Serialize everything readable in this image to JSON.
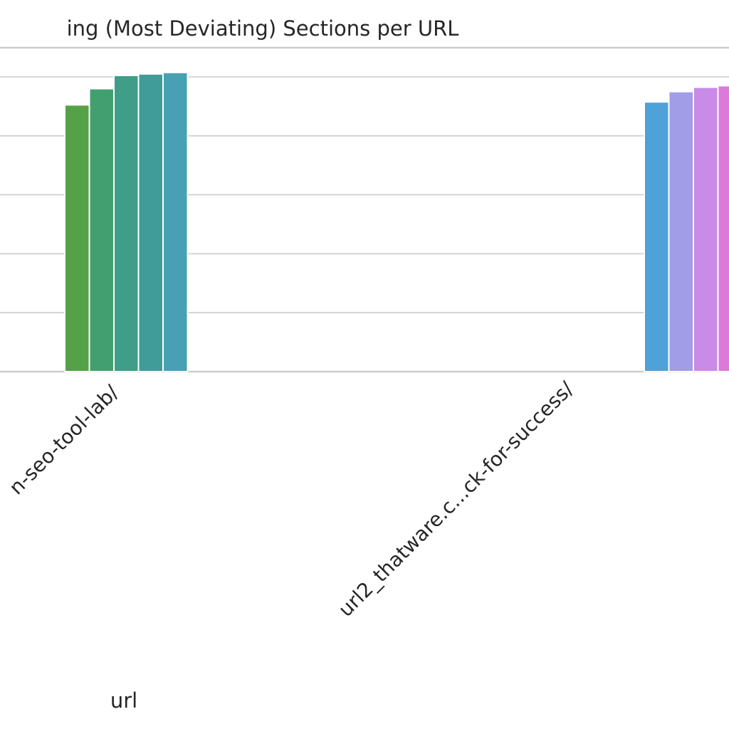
{
  "chart_data": {
    "type": "bar",
    "title": "ing (Most Deviating) Sections per URL",
    "xlabel": "url",
    "ylabel": "",
    "categories": [
      "n-seo-tool-lab/",
      "url2_thatware.c...ck-for-success/"
    ],
    "ylim": [
      0,
      1.0
    ],
    "grid": true,
    "groups": [
      {
        "category": "n-seo-tool-lab/",
        "values": [
          0.905,
          0.96,
          1.005,
          1.01,
          1.015
        ],
        "colors": [
          "#55a147",
          "#42a070",
          "#3e9e87",
          "#3f9c97",
          "#47a0b3"
        ]
      },
      {
        "category": "url2_thatware.c...ck-for-success/",
        "values": [
          0.915,
          0.95,
          0.965,
          0.97
        ],
        "colors": [
          "#4fa1d8",
          "#a19de6",
          "#c88be6",
          "#dd7ad9"
        ]
      }
    ]
  }
}
